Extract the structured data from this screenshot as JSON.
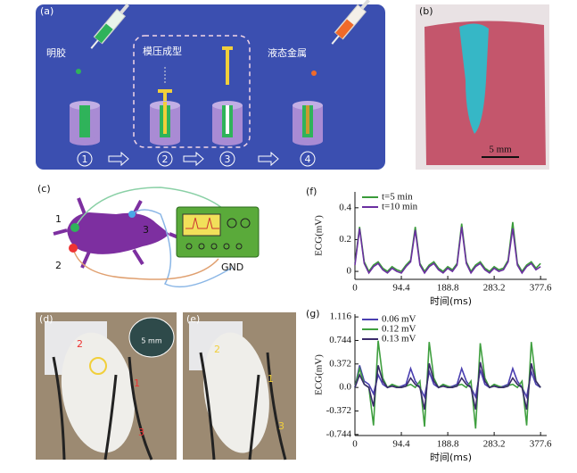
{
  "panel_a": {
    "label": "(a)",
    "texts": [
      "明胶",
      "模压成型",
      "液态金属"
    ],
    "steps": [
      "1",
      "2",
      "3",
      "4"
    ]
  },
  "panel_b": {
    "label": "(b)",
    "scale": "5 mm"
  },
  "panel_c": {
    "label": "(c)",
    "electrodes": [
      "1",
      "2",
      "3"
    ],
    "ground": "GND"
  },
  "panel_d": {
    "label": "(d)",
    "electrodes": [
      "1",
      "2",
      "3"
    ],
    "scale": "5 mm"
  },
  "panel_e": {
    "label": "(e)",
    "electrodes": [
      "1",
      "2",
      "3"
    ]
  },
  "chart_data": [
    {
      "type": "line",
      "label": "(f)",
      "x_label": "时间(ms)",
      "y_label": "ECG(mV)",
      "x": [
        0,
        9.44,
        18.88,
        28.32,
        37.76,
        47.2,
        56.64,
        66.08,
        75.52,
        84.96,
        94.4,
        103.84,
        113.28,
        122.72,
        132.16,
        141.6,
        151.04,
        160.48,
        169.92,
        179.36,
        188.8,
        198.24,
        207.68,
        217.12,
        226.56,
        236,
        245.44,
        254.88,
        264.32,
        273.76,
        283.2,
        292.64,
        302.08,
        311.52,
        320.96,
        330.4,
        339.84,
        349.28,
        358.72,
        368.16,
        377.6
      ],
      "xlim": [
        0,
        390
      ],
      "xticks": [
        0,
        94.4,
        188.8,
        283.2,
        377.6
      ],
      "ylim": [
        -0.05,
        0.5
      ],
      "yticks": [
        0,
        0.2,
        0.4
      ],
      "series": [
        {
          "name": "t=5 min",
          "color": "#3a9b3a",
          "values": [
            0.05,
            0.28,
            0.06,
            0.0,
            0.04,
            0.06,
            0.02,
            0.0,
            0.03,
            0.01,
            0.0,
            0.04,
            0.07,
            0.28,
            0.05,
            0.0,
            0.04,
            0.06,
            0.02,
            0.0,
            0.03,
            0.01,
            0.05,
            0.3,
            0.06,
            0.0,
            0.04,
            0.06,
            0.02,
            0.0,
            0.03,
            0.01,
            0.02,
            0.07,
            0.31,
            0.05,
            0.0,
            0.04,
            0.06,
            0.02,
            0.05
          ]
        },
        {
          "name": "t=10 min",
          "color": "#6a2fa0",
          "values": [
            0.04,
            0.27,
            0.05,
            -0.01,
            0.03,
            0.05,
            0.01,
            -0.01,
            0.02,
            0.0,
            -0.01,
            0.03,
            0.06,
            0.26,
            0.04,
            -0.01,
            0.03,
            0.05,
            0.01,
            -0.01,
            0.02,
            0.0,
            0.04,
            0.28,
            0.05,
            -0.01,
            0.03,
            0.05,
            0.01,
            -0.01,
            0.02,
            0.0,
            0.01,
            0.06,
            0.27,
            0.04,
            -0.01,
            0.03,
            0.05,
            0.01,
            0.03
          ]
        }
      ]
    },
    {
      "type": "line",
      "label": "(g)",
      "x_label": "时间(ms)",
      "y_label": "ECG(mV)",
      "x": [
        0,
        9.44,
        18.88,
        28.32,
        37.76,
        47.2,
        56.64,
        66.08,
        75.52,
        84.96,
        94.4,
        103.84,
        113.28,
        122.72,
        132.16,
        141.6,
        151.04,
        160.48,
        169.92,
        179.36,
        188.8,
        198.24,
        207.68,
        217.12,
        226.56,
        236,
        245.44,
        254.88,
        264.32,
        273.76,
        283.2,
        292.64,
        302.08,
        311.52,
        320.96,
        330.4,
        339.84,
        349.28,
        358.72,
        368.16,
        377.6
      ],
      "xlim": [
        0,
        390
      ],
      "xticks": [
        0,
        94.4,
        188.8,
        283.2,
        377.6
      ],
      "ylim": [
        -0.76,
        1.16
      ],
      "yticks": [
        1.116,
        0.744,
        0.372,
        {
          "value": 0,
          "label": "0.0"
        },
        -0.372,
        -0.744
      ],
      "series": [
        {
          "name": "0.06 mV",
          "color": "#4a3fb0",
          "values": [
            0.0,
            0.35,
            0.1,
            0.05,
            -0.1,
            0.2,
            0.05,
            0.0,
            0.03,
            0.0,
            0.02,
            0.05,
            0.3,
            0.1,
            0.0,
            -0.15,
            0.25,
            0.05,
            0.0,
            0.03,
            0.0,
            0.02,
            0.05,
            0.3,
            0.1,
            0.0,
            -0.15,
            0.28,
            0.05,
            0.0,
            0.03,
            0.0,
            0.02,
            0.05,
            0.3,
            0.1,
            0.0,
            -0.15,
            0.25,
            0.05,
            0.0
          ]
        },
        {
          "name": "0.12 mV",
          "color": "#3f9f3f",
          "values": [
            0.0,
            0.3,
            0.05,
            0.0,
            -0.6,
            0.74,
            0.15,
            0.0,
            0.05,
            0.02,
            0.0,
            0.02,
            0.05,
            0.0,
            0.1,
            -0.62,
            0.72,
            0.15,
            0.0,
            0.05,
            0.02,
            0.0,
            0.03,
            0.05,
            0.0,
            0.1,
            -0.65,
            0.7,
            0.15,
            0.0,
            0.05,
            0.02,
            0.0,
            0.03,
            0.05,
            0.0,
            0.1,
            -0.6,
            0.72,
            0.1,
            0.0
          ]
        },
        {
          "name": "0.13 mV",
          "color": "#3a2a6a",
          "values": [
            0.0,
            0.2,
            0.05,
            0.0,
            -0.3,
            0.35,
            0.1,
            0.0,
            0.02,
            0.0,
            0.0,
            0.02,
            0.15,
            0.05,
            0.0,
            -0.35,
            0.38,
            0.1,
            0.0,
            0.02,
            0.0,
            0.0,
            0.02,
            0.15,
            0.05,
            0.0,
            -0.35,
            0.4,
            0.1,
            0.0,
            0.02,
            0.0,
            0.0,
            0.02,
            0.15,
            0.05,
            0.0,
            -0.35,
            0.38,
            0.1,
            0.0
          ]
        }
      ]
    }
  ]
}
